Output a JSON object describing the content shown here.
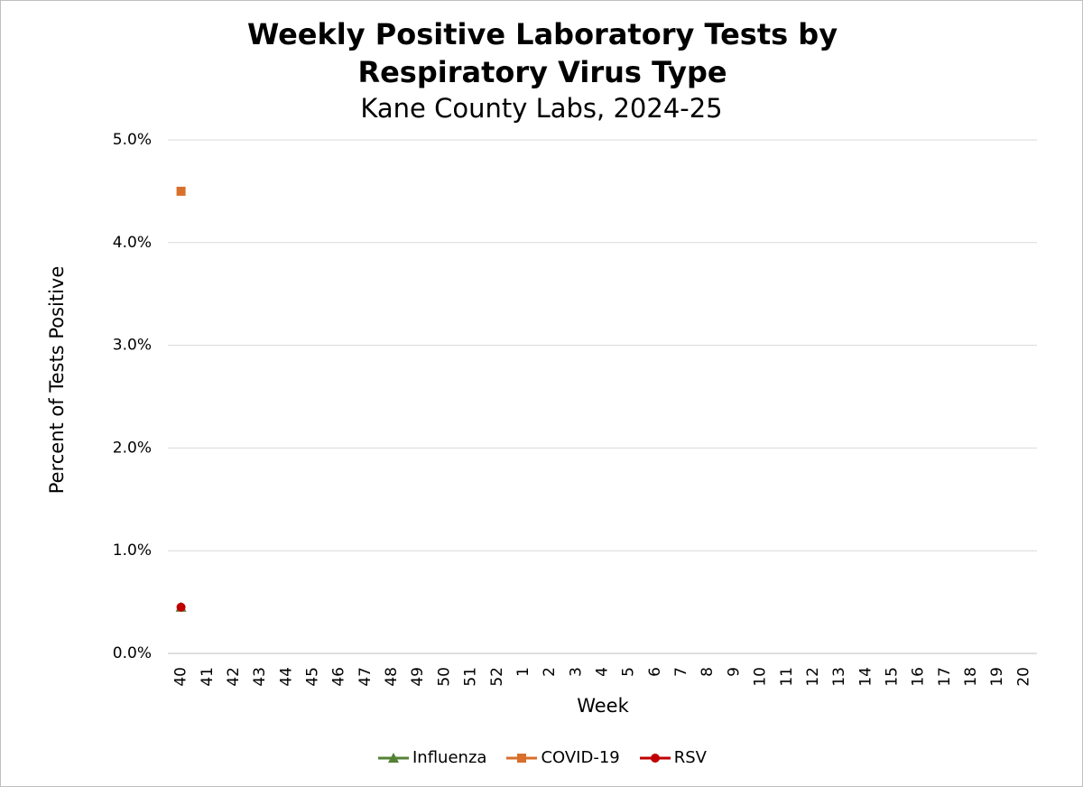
{
  "chart_data": {
    "type": "line",
    "title": "Weekly Positive Laboratory Tests by Respiratory Virus Type",
    "subtitle": "Kane County Labs, 2024-25",
    "x_label": "Week",
    "y_label": "Percent of Tests Positive",
    "categories": [
      "40",
      "41",
      "42",
      "43",
      "44",
      "45",
      "46",
      "47",
      "48",
      "49",
      "50",
      "51",
      "52",
      "1",
      "2",
      "3",
      "4",
      "5",
      "6",
      "7",
      "8",
      "9",
      "10",
      "11",
      "12",
      "13",
      "14",
      "15",
      "16",
      "17",
      "18",
      "19",
      "20"
    ],
    "series": [
      {
        "name": "Influenza",
        "color": "#548235",
        "marker": "triangle",
        "values": [
          0.45,
          null,
          null,
          null,
          null,
          null,
          null,
          null,
          null,
          null,
          null,
          null,
          null,
          null,
          null,
          null,
          null,
          null,
          null,
          null,
          null,
          null,
          null,
          null,
          null,
          null,
          null,
          null,
          null,
          null,
          null,
          null,
          null
        ]
      },
      {
        "name": "COVID-19",
        "color": "#d86f2a",
        "marker": "square",
        "values": [
          4.5,
          null,
          null,
          null,
          null,
          null,
          null,
          null,
          null,
          null,
          null,
          null,
          null,
          null,
          null,
          null,
          null,
          null,
          null,
          null,
          null,
          null,
          null,
          null,
          null,
          null,
          null,
          null,
          null,
          null,
          null,
          null,
          null
        ]
      },
      {
        "name": "RSV",
        "color": "#c00000",
        "marker": "circle",
        "values": [
          0.45,
          null,
          null,
          null,
          null,
          null,
          null,
          null,
          null,
          null,
          null,
          null,
          null,
          null,
          null,
          null,
          null,
          null,
          null,
          null,
          null,
          null,
          null,
          null,
          null,
          null,
          null,
          null,
          null,
          null,
          null,
          null,
          null
        ]
      }
    ],
    "ylim": [
      0,
      5
    ],
    "yticks": [
      {
        "value": 0,
        "label": "0.0%"
      },
      {
        "value": 1,
        "label": "1.0%"
      },
      {
        "value": 2,
        "label": "2.0%"
      },
      {
        "value": 3,
        "label": "3.0%"
      },
      {
        "value": 4,
        "label": "4.0%"
      },
      {
        "value": 5,
        "label": "5.0%"
      }
    ],
    "grid": true,
    "legend": "bottom"
  }
}
